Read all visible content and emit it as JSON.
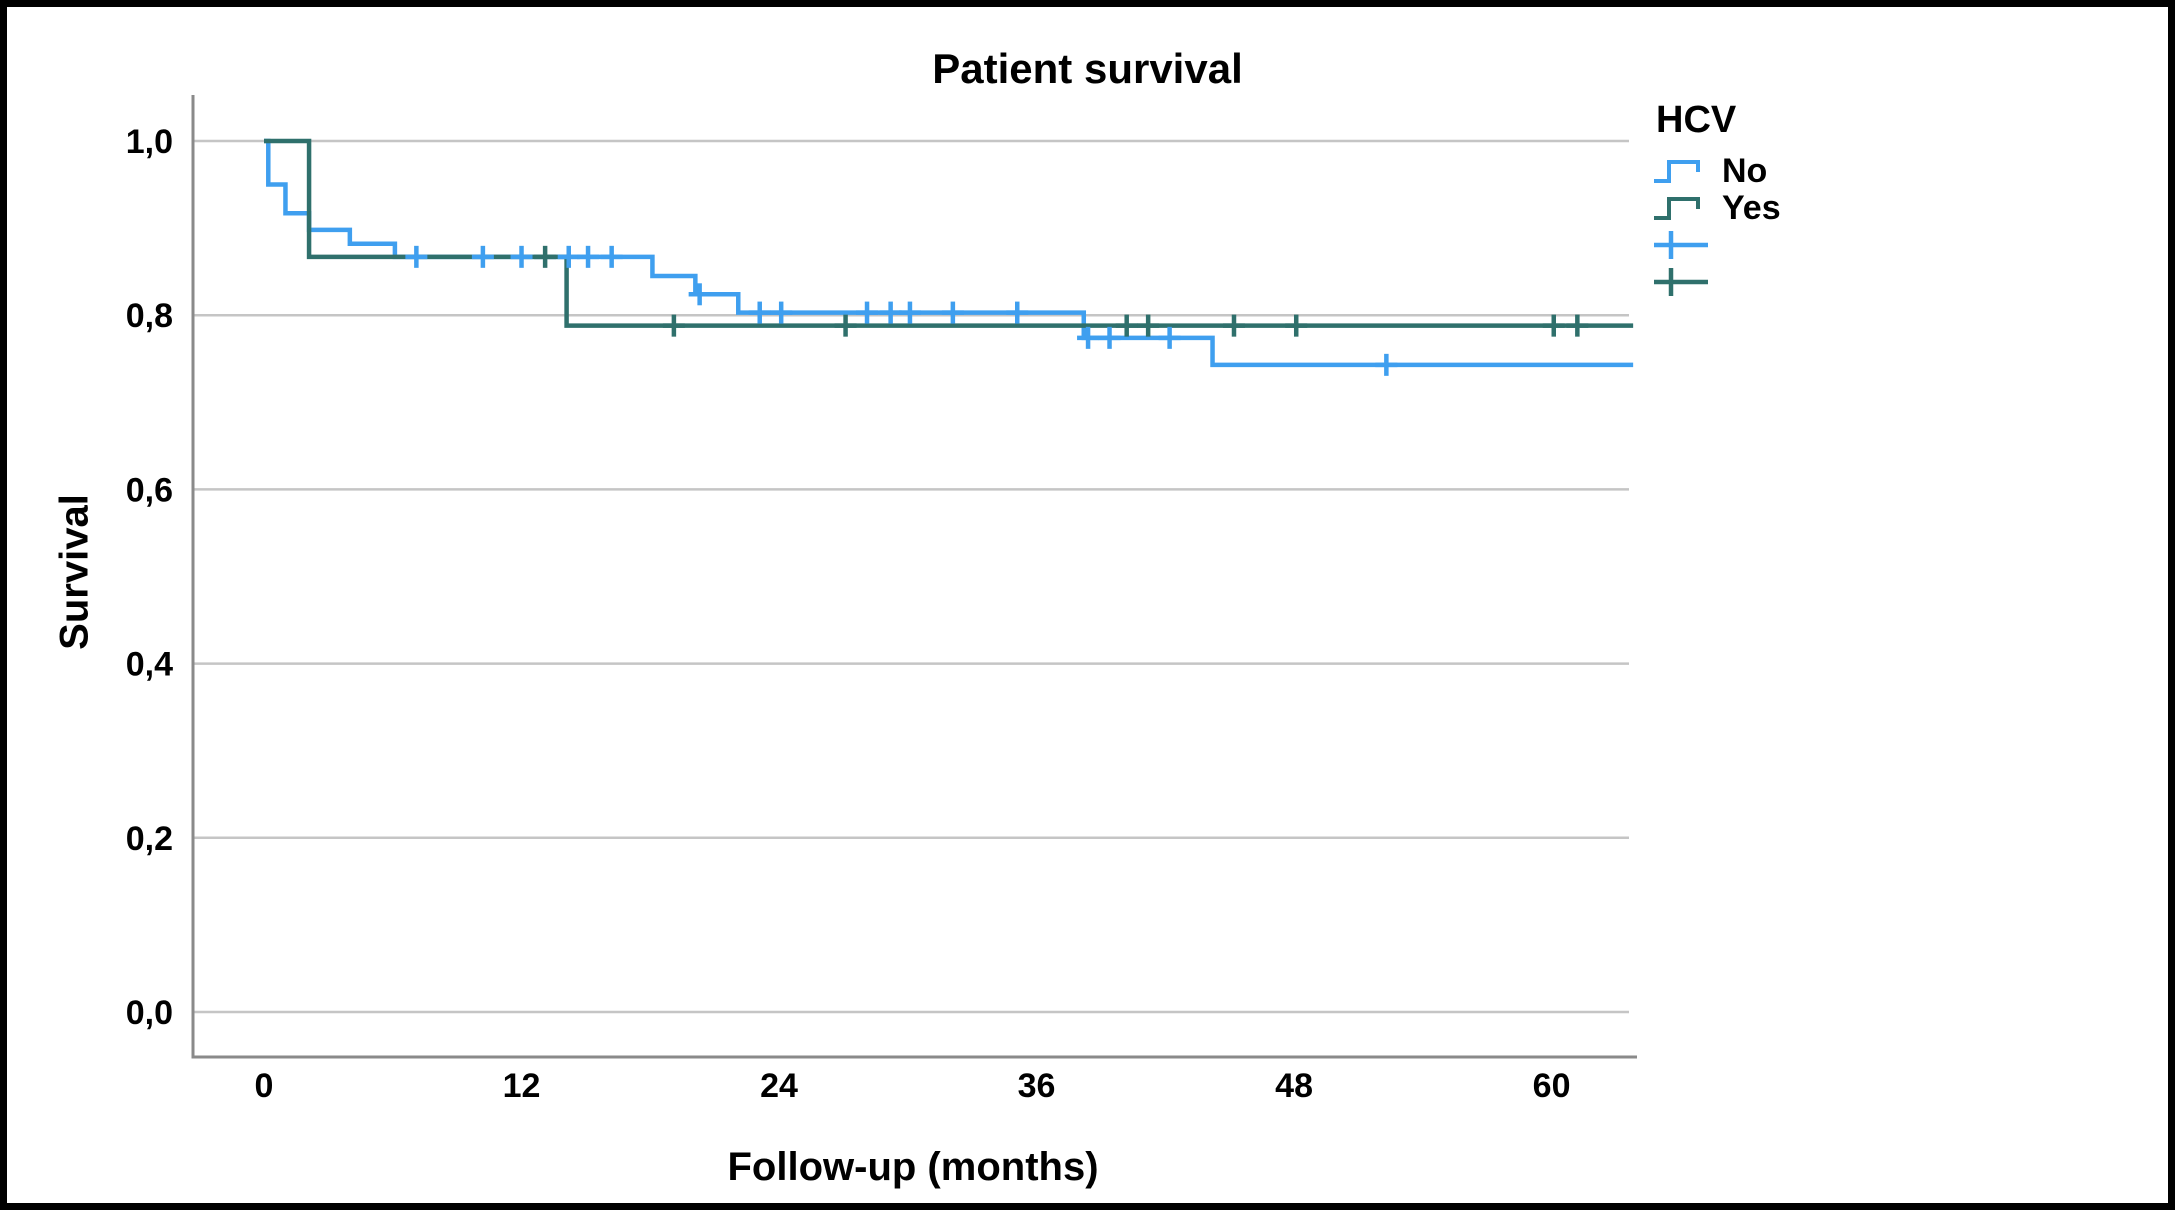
{
  "figure": {
    "border_color": "#000000",
    "background": "#ffffff"
  },
  "legend": {
    "title": "HCV",
    "entries": [
      {
        "label": "No",
        "marker": "step-line",
        "color": "#3f9fef"
      },
      {
        "label": "Yes",
        "marker": "step-line",
        "color": "#2f706c"
      },
      {
        "label": "",
        "marker": "censor-plus",
        "color": "#3f9fef"
      },
      {
        "label": "",
        "marker": "censor-plus",
        "color": "#2f706c"
      }
    ]
  },
  "colors": {
    "grid": "#c5c5c5",
    "axis": "#8a8a8a",
    "text": "#000000"
  },
  "chart_data": {
    "type": "line",
    "subtype": "kaplan-meier-step",
    "title": "Patient survival",
    "xlabel": "Follow-up (months)",
    "ylabel": "Survival",
    "group_variable": "HCV",
    "xlim": [
      -3.3,
      63.9
    ],
    "ylim": [
      -0.05,
      1.07
    ],
    "grid": "horizontal-only",
    "legend_position": "top-right-outside",
    "x_ticks": [
      {
        "value": 0,
        "label": "0"
      },
      {
        "value": 12,
        "label": "12"
      },
      {
        "value": 24,
        "label": "24"
      },
      {
        "value": 36,
        "label": "36"
      },
      {
        "value": 48,
        "label": "48"
      },
      {
        "value": 60,
        "label": "60"
      }
    ],
    "y_ticks": [
      {
        "value": 0.0,
        "label": "0,0"
      },
      {
        "value": 0.2,
        "label": "0,2"
      },
      {
        "value": 0.4,
        "label": "0,4"
      },
      {
        "value": 0.6,
        "label": "0,6"
      },
      {
        "value": 0.8,
        "label": "0,8"
      },
      {
        "value": 1.0,
        "label": "1,0"
      }
    ],
    "series": [
      {
        "name": "No",
        "color": "#3f9fef",
        "end_time": 63.8,
        "steps": [
          [
            0,
            1.0
          ],
          [
            0.2,
            0.95
          ],
          [
            1.0,
            0.917
          ],
          [
            2.1,
            0.898
          ],
          [
            4.0,
            0.882
          ],
          [
            6.1,
            0.867
          ],
          [
            18.1,
            0.845
          ],
          [
            20.1,
            0.824
          ],
          [
            22.1,
            0.803
          ],
          [
            38.2,
            0.774
          ],
          [
            44.2,
            0.743
          ]
        ],
        "censored": [
          [
            7.1,
            0.867
          ],
          [
            10.2,
            0.867
          ],
          [
            12.0,
            0.867
          ],
          [
            14.2,
            0.867
          ],
          [
            15.1,
            0.867
          ],
          [
            16.2,
            0.867
          ],
          [
            20.3,
            0.824
          ],
          [
            23.1,
            0.803
          ],
          [
            24.1,
            0.803
          ],
          [
            28.1,
            0.803
          ],
          [
            29.2,
            0.803
          ],
          [
            30.1,
            0.803
          ],
          [
            32.1,
            0.803
          ],
          [
            35.1,
            0.803
          ],
          [
            38.4,
            0.774
          ],
          [
            39.4,
            0.774
          ],
          [
            42.2,
            0.774
          ],
          [
            52.3,
            0.743
          ]
        ]
      },
      {
        "name": "Yes",
        "color": "#2f706c",
        "end_time": 63.8,
        "steps": [
          [
            0,
            1.0
          ],
          [
            2.1,
            0.867
          ],
          [
            14.1,
            0.788
          ]
        ],
        "censored": [
          [
            13.1,
            0.867
          ],
          [
            19.1,
            0.788
          ],
          [
            27.1,
            0.788
          ],
          [
            40.2,
            0.788
          ],
          [
            41.2,
            0.788
          ],
          [
            45.2,
            0.788
          ],
          [
            48.1,
            0.788
          ],
          [
            60.1,
            0.788
          ],
          [
            61.2,
            0.788
          ]
        ]
      }
    ]
  }
}
